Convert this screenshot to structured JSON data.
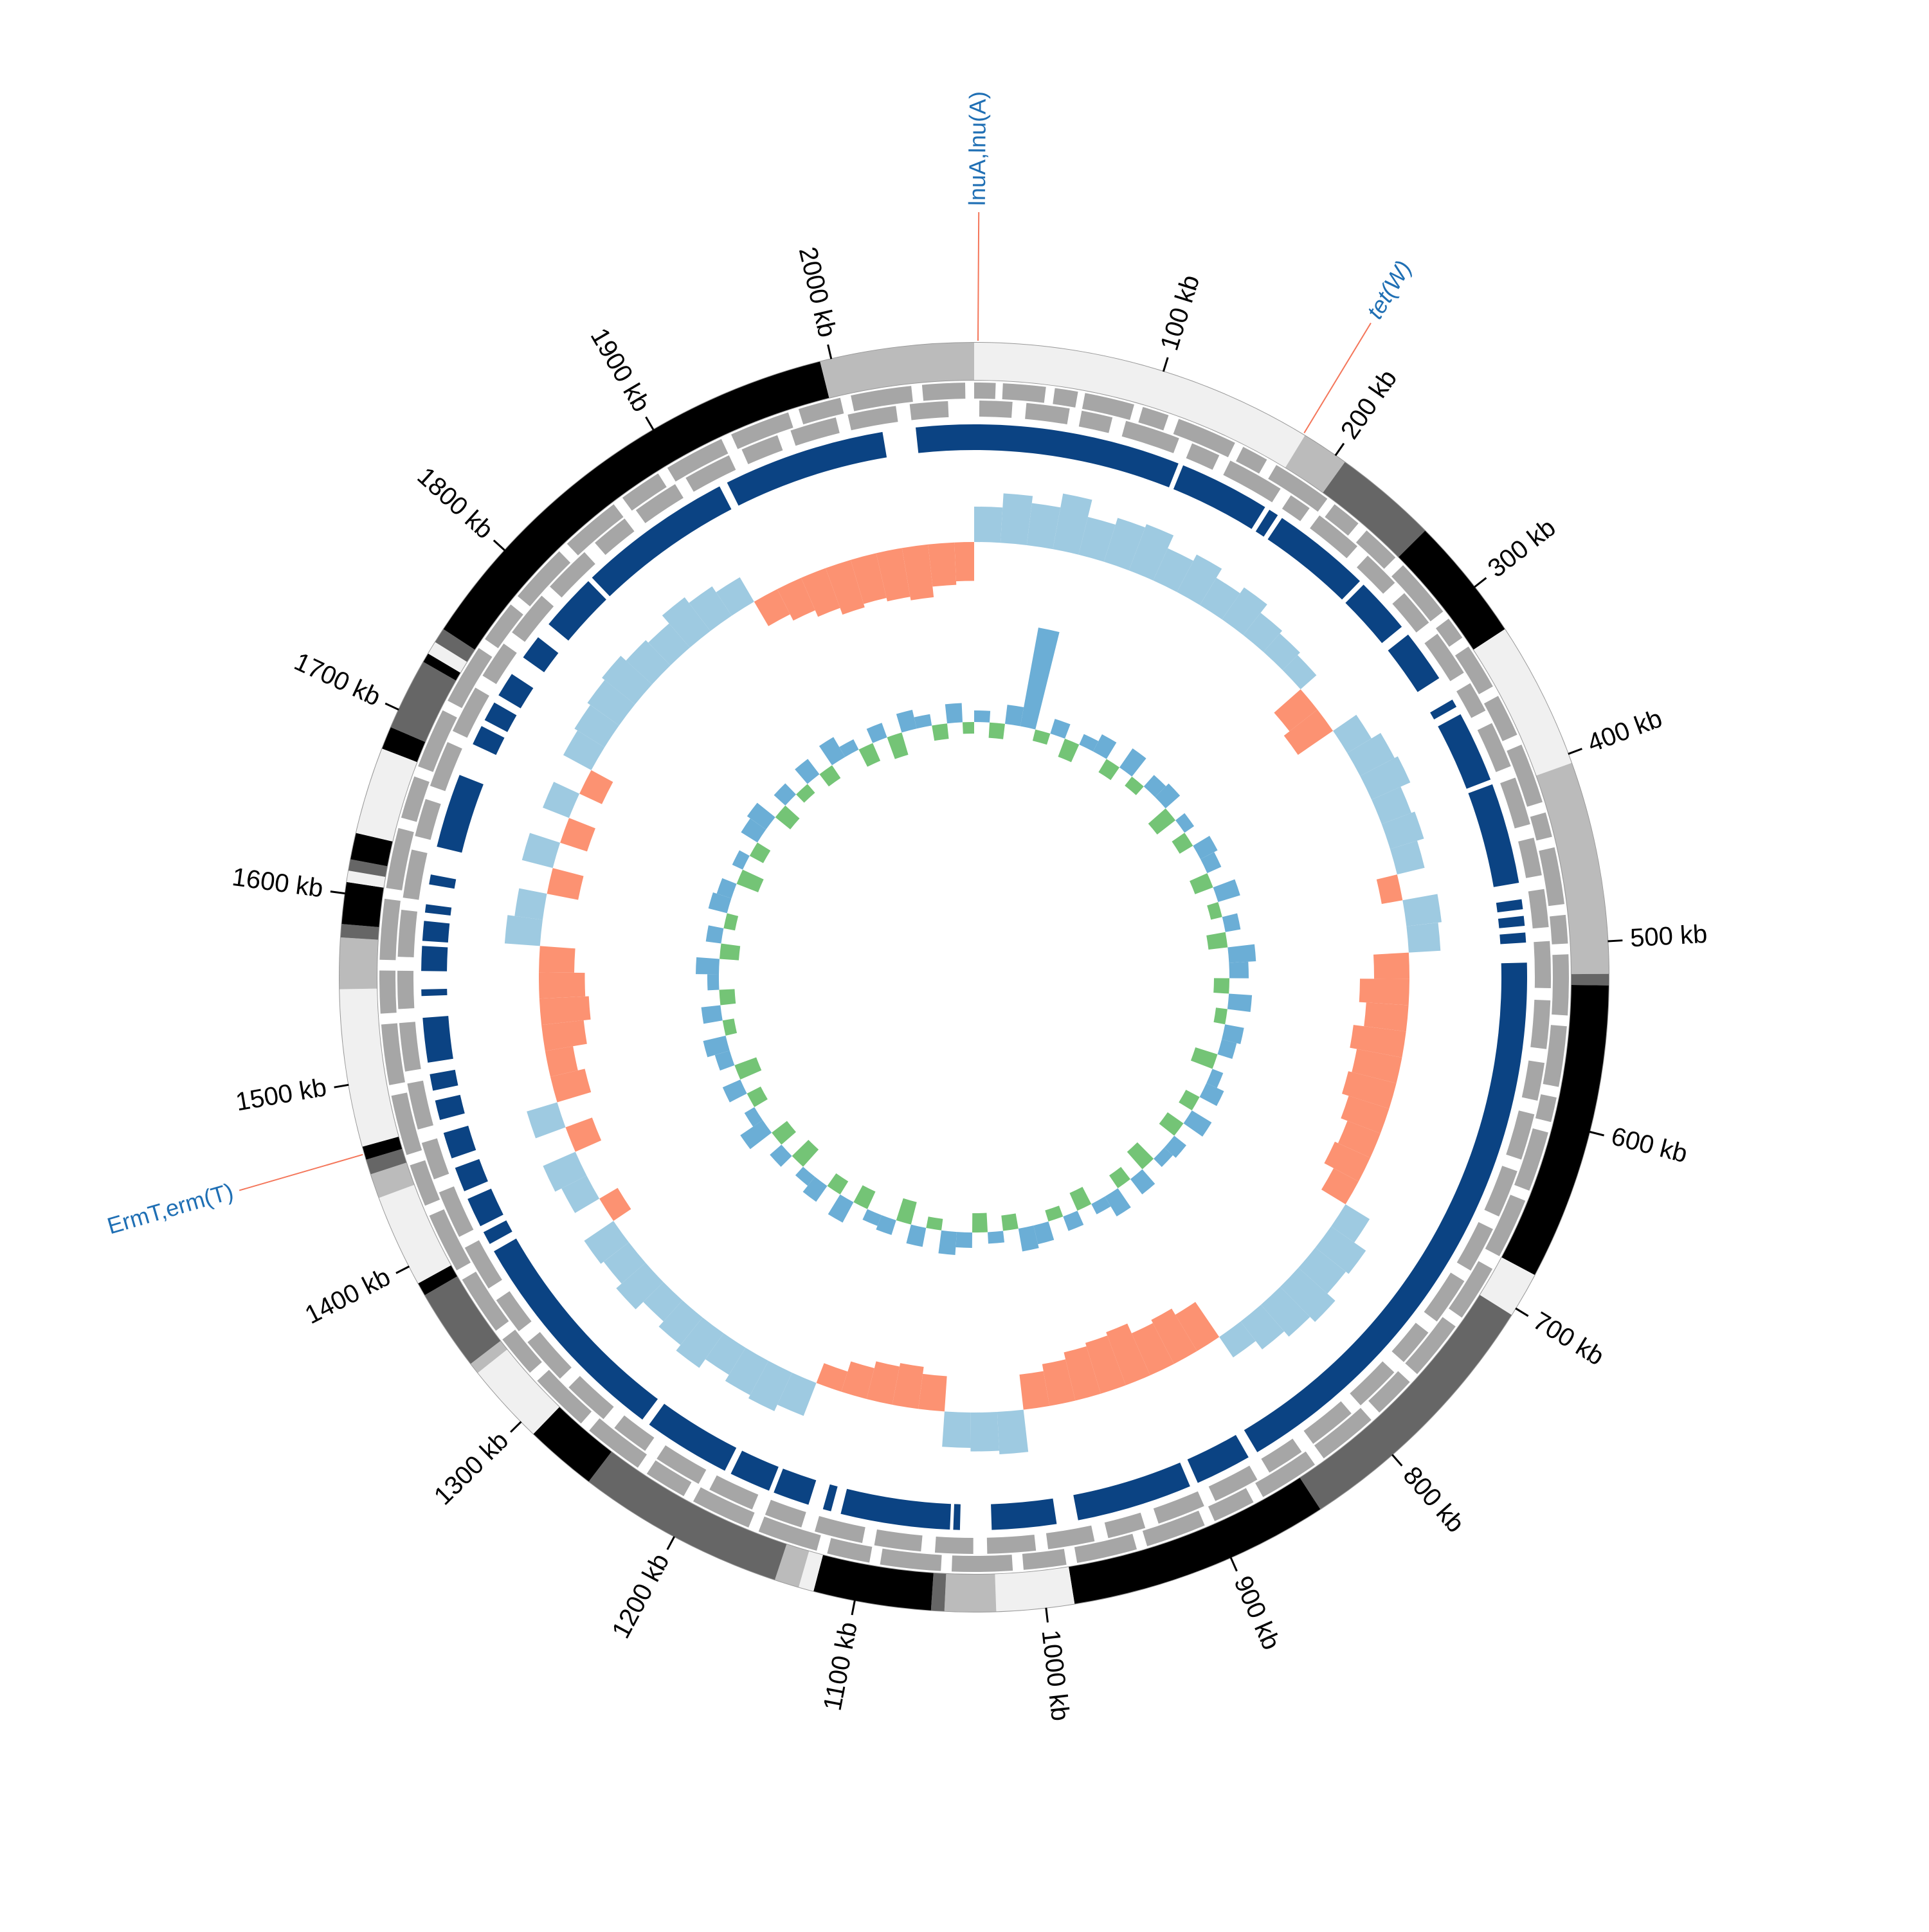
{
  "chart_data": {
    "type": "circular-genome",
    "xlim": [
      0,
      2075
    ],
    "xticks": [
      {
        "value": 100,
        "label": "100 kb"
      },
      {
        "value": 200,
        "label": "200 kb"
      },
      {
        "value": 300,
        "label": "300 kb"
      },
      {
        "value": 400,
        "label": "400 kb"
      },
      {
        "value": 500,
        "label": "500 kb"
      },
      {
        "value": 600,
        "label": "600 kb"
      },
      {
        "value": 700,
        "label": "700 kb"
      },
      {
        "value": 800,
        "label": "800 kb"
      },
      {
        "value": 900,
        "label": "900 kb"
      },
      {
        "value": 1000,
        "label": "1000 kb"
      },
      {
        "value": 1100,
        "label": "1100 kb"
      },
      {
        "value": 1200,
        "label": "1200 kb"
      },
      {
        "value": 1300,
        "label": "1300 kb"
      },
      {
        "value": 1400,
        "label": "1400 kb"
      },
      {
        "value": 1500,
        "label": "1500 kb"
      },
      {
        "value": 1600,
        "label": "1600 kb"
      },
      {
        "value": 1700,
        "label": "1700 kb"
      },
      {
        "value": 1800,
        "label": "1800 kb"
      },
      {
        "value": 1900,
        "label": "1900 kb"
      },
      {
        "value": 2000,
        "label": "2000 kb"
      }
    ],
    "contigs": {
      "starts": [
        0,
        181,
        206,
        261,
        327,
        405,
        517,
        523,
        680,
        704,
        847,
        985,
        1026,
        1053,
        1060,
        1122,
        1130,
        1143,
        1253,
        1291,
        1334,
        1340,
        1383,
        1390,
        1439,
        1452,
        1460,
        1467,
        1550,
        1577,
        1584,
        1606,
        1612,
        1618,
        1632,
        1678,
        1690,
        1728,
        1733,
        1740,
        1748,
        1994
      ],
      "ends": [
        181,
        206,
        261,
        327,
        405,
        517,
        523,
        680,
        704,
        847,
        985,
        1026,
        1053,
        1060,
        1122,
        1130,
        1143,
        1253,
        1291,
        1334,
        1340,
        1383,
        1390,
        1439,
        1452,
        1460,
        1467,
        1550,
        1577,
        1584,
        1606,
        1612,
        1618,
        1632,
        1678,
        1690,
        1728,
        1733,
        1740,
        1748,
        1994,
        2075
      ],
      "colors": [
        "#f0f0f0",
        "#bbbbbb",
        "#666666",
        "#000000",
        "#f0f0f0",
        "#bbbbbb",
        "#666666",
        "#000000",
        "#f0f0f0",
        "#666666",
        "#000000",
        "#f0f0f0",
        "#bbbbbb",
        "#666666",
        "#000000",
        "#f0f0f0",
        "#bbbbbb",
        "#666666",
        "#000000",
        "#f0f0f0",
        "#bbbbbb",
        "#666666",
        "#000000",
        "#f0f0f0",
        "#bbbbbb",
        "#666666",
        "#000000",
        "#f0f0f0",
        "#bbbbbb",
        "#666666",
        "#000000",
        "#f0f0f0",
        "#666666",
        "#000000",
        "#f0f0f0",
        "#000000",
        "#666666",
        "#000000",
        "#f0f0f0",
        "#666666",
        "#000000",
        "#bbbbbb"
      ]
    },
    "genes": {
      "color": "#a6a6a6",
      "forward": [
        [
          0,
          12
        ],
        [
          16,
          40
        ],
        [
          45,
          58
        ],
        [
          62,
          90
        ],
        [
          95,
          110
        ],
        [
          116,
          150
        ],
        [
          155,
          170
        ],
        [
          176,
          210
        ],
        [
          215,
          232
        ],
        [
          238,
          260
        ],
        [
          266,
          300
        ],
        [
          305,
          318
        ],
        [
          324,
          350
        ],
        [
          356,
          380
        ],
        [
          386,
          420
        ],
        [
          426,
          440
        ],
        [
          446,
          478
        ],
        [
          484,
          500
        ],
        [
          506,
          540
        ],
        [
          546,
          580
        ],
        [
          586,
          600
        ],
        [
          606,
          640
        ],
        [
          646,
          680
        ],
        [
          688,
          720
        ],
        [
          726,
          760
        ],
        [
          766,
          790
        ],
        [
          796,
          830
        ],
        [
          836,
          870
        ],
        [
          876,
          900
        ],
        [
          906,
          940
        ],
        [
          946,
          980
        ],
        [
          986,
          1010
        ],
        [
          1016,
          1050
        ],
        [
          1056,
          1090
        ],
        [
          1096,
          1120
        ],
        [
          1126,
          1160
        ],
        [
          1166,
          1200
        ],
        [
          1206,
          1230
        ],
        [
          1236,
          1270
        ],
        [
          1276,
          1310
        ],
        [
          1316,
          1340
        ],
        [
          1346,
          1380
        ],
        [
          1386,
          1420
        ],
        [
          1426,
          1450
        ],
        [
          1456,
          1490
        ],
        [
          1496,
          1530
        ],
        [
          1536,
          1560
        ],
        [
          1566,
          1600
        ],
        [
          1606,
          1640
        ],
        [
          1646,
          1670
        ],
        [
          1676,
          1710
        ],
        [
          1716,
          1750
        ],
        [
          1756,
          1780
        ],
        [
          1786,
          1820
        ],
        [
          1826,
          1860
        ],
        [
          1866,
          1890
        ],
        [
          1896,
          1930
        ],
        [
          1936,
          1970
        ],
        [
          1976,
          2000
        ],
        [
          2006,
          2040
        ],
        [
          2046,
          2070
        ]
      ],
      "reverse": [
        [
          3,
          22
        ],
        [
          30,
          55
        ],
        [
          62,
          80
        ],
        [
          88,
          120
        ],
        [
          128,
          145
        ],
        [
          152,
          185
        ],
        [
          192,
          205
        ],
        [
          212,
          240
        ],
        [
          248,
          270
        ],
        [
          278,
          300
        ],
        [
          308,
          335
        ],
        [
          342,
          360
        ],
        [
          368,
          395
        ],
        [
          402,
          430
        ],
        [
          438,
          460
        ],
        [
          468,
          490
        ],
        [
          498,
          525
        ],
        [
          532,
          560
        ],
        [
          568,
          590
        ],
        [
          598,
          625
        ],
        [
          632,
          660
        ],
        [
          668,
          695
        ],
        [
          702,
          730
        ],
        [
          738,
          760
        ],
        [
          768,
          795
        ],
        [
          802,
          830
        ],
        [
          838,
          860
        ],
        [
          868,
          895
        ],
        [
          902,
          930
        ],
        [
          938,
          960
        ],
        [
          968,
          995
        ],
        [
          1002,
          1030
        ],
        [
          1038,
          1060
        ],
        [
          1068,
          1095
        ],
        [
          1102,
          1130
        ],
        [
          1138,
          1160
        ],
        [
          1168,
          1195
        ],
        [
          1202,
          1230
        ],
        [
          1238,
          1260
        ],
        [
          1268,
          1295
        ],
        [
          1302,
          1330
        ],
        [
          1338,
          1360
        ],
        [
          1368,
          1395
        ],
        [
          1402,
          1430
        ],
        [
          1438,
          1460
        ],
        [
          1468,
          1495
        ],
        [
          1502,
          1530
        ],
        [
          1538,
          1560
        ],
        [
          1568,
          1595
        ],
        [
          1602,
          1630
        ],
        [
          1638,
          1660
        ],
        [
          1668,
          1695
        ],
        [
          1702,
          1730
        ],
        [
          1738,
          1760
        ],
        [
          1768,
          1795
        ],
        [
          1802,
          1830
        ],
        [
          1838,
          1860
        ],
        [
          1868,
          1895
        ],
        [
          1902,
          1930
        ],
        [
          1938,
          1960
        ],
        [
          1968,
          1995
        ],
        [
          2002,
          2030
        ],
        [
          2038,
          2060
        ]
      ]
    },
    "synteny": {
      "color": "#0b4383",
      "blocks": [
        [
          0,
          125
        ],
        [
          128,
          183
        ],
        [
          186,
          192
        ],
        [
          195,
          255
        ],
        [
          258,
          292
        ],
        [
          298,
          330
        ],
        [
          345,
          350
        ],
        [
          355,
          398
        ],
        [
          401,
          462
        ],
        [
          472,
          478
        ],
        [
          482,
          488
        ],
        [
          492,
          498
        ],
        [
          510,
          860
        ],
        [
          866,
          900
        ],
        [
          905,
          975
        ],
        [
          988,
          1027
        ],
        [
          1046,
          1050
        ],
        [
          1052,
          1118
        ],
        [
          1124,
          1129
        ],
        [
          1138,
          1160
        ],
        [
          1163,
          1188
        ],
        [
          1192,
          1245
        ],
        [
          1250,
          1385
        ],
        [
          1390,
          1398
        ],
        [
          1402,
          1420
        ],
        [
          1425,
          1440
        ],
        [
          1446,
          1462
        ],
        [
          1470,
          1482
        ],
        [
          1488,
          1498
        ],
        [
          1505,
          1532
        ],
        [
          1545,
          1549
        ],
        [
          1560,
          1575
        ],
        [
          1578,
          1590
        ],
        [
          1595,
          1600
        ],
        [
          1612,
          1618
        ],
        [
          1635,
          1680
        ],
        [
          1700,
          1712
        ],
        [
          1716,
          1728
        ],
        [
          1733,
          1748
        ],
        [
          1760,
          1775
        ],
        [
          1785,
          1820
        ],
        [
          1823,
          1917
        ],
        [
          1922,
          2020
        ],
        [
          2040,
          2075
        ]
      ]
    },
    "x": [
      0,
      20,
      40,
      60,
      80,
      100,
      120,
      140,
      160,
      180,
      200,
      220,
      240,
      260,
      280,
      300,
      320,
      340,
      360,
      380,
      400,
      420,
      440,
      460,
      480,
      500,
      520,
      540,
      560,
      580,
      600,
      620,
      640,
      660,
      680,
      700,
      720,
      740,
      760,
      780,
      800,
      820,
      840,
      860,
      880,
      900,
      920,
      940,
      960,
      980,
      1000,
      1020,
      1040,
      1060,
      1080,
      1100,
      1120,
      1140,
      1160,
      1180,
      1200,
      1220,
      1240,
      1260,
      1280,
      1300,
      1320,
      1340,
      1360,
      1380,
      1400,
      1420,
      1440,
      1460,
      1480,
      1500,
      1520,
      1540,
      1560,
      1580,
      1600,
      1620,
      1640,
      1660,
      1680,
      1700,
      1720,
      1740,
      1760,
      1780,
      1800,
      1820,
      1840,
      1860,
      1880,
      1900,
      1920,
      1940,
      1960,
      1980,
      2000,
      2020,
      2040,
      2060
    ],
    "gc_skew": {
      "positive_color": "#9ecae1",
      "negative_color": "#fc9272",
      "values": [
        0.5,
        0.7,
        0.6,
        0.8,
        0.55,
        0.65,
        0.7,
        0.5,
        0.6,
        0.45,
        0.55,
        0.4,
        0.35,
        0.3,
        -0.5,
        -0.6,
        0.4,
        0.55,
        0.6,
        0.45,
        0.5,
        0.4,
        -0.3,
        0.5,
        0.45,
        -0.5,
        -0.7,
        -0.6,
        -0.75,
        -0.65,
        -0.7,
        -0.6,
        -0.5,
        -0.55,
        -0.4,
        0.4,
        0.6,
        0.55,
        0.7,
        0.6,
        0.5,
        0.35,
        -0.6,
        -0.7,
        -0.65,
        -0.8,
        -0.75,
        -0.7,
        -0.6,
        -0.5,
        0.6,
        0.55,
        0.5,
        -0.5,
        -0.6,
        -0.55,
        -0.45,
        -0.3,
        0.5,
        0.6,
        0.55,
        0.45,
        0.6,
        0.5,
        0.4,
        0.55,
        0.45,
        0.5,
        -0.3,
        0.4,
        0.5,
        -0.4,
        0.45,
        -0.5,
        -0.4,
        -0.6,
        -0.7,
        -0.65,
        -0.5,
        0.5,
        0.4,
        -0.45,
        0.45,
        -0.4,
        0.4,
        -0.35,
        0.45,
        0.5,
        0.55,
        0.6,
        0.5,
        0.45,
        0.6,
        0.5,
        0.4,
        -0.4,
        -0.5,
        -0.6,
        -0.7,
        -0.65,
        -0.7,
        -0.75,
        -0.6,
        -0.55
      ]
    },
    "gc_content": {
      "positive_color": "#6baed6",
      "negative_color": "#74c476",
      "values": [
        0.3,
        -0.4,
        0.5,
        2.6,
        -0.3,
        0.4,
        -0.5,
        0.3,
        0.5,
        -0.4,
        0.6,
        -0.3,
        0.4,
        0.5,
        -0.6,
        0.3,
        -0.4,
        0.5,
        0.4,
        -0.5,
        0.6,
        -0.3,
        0.4,
        -0.5,
        0.7,
        0.5,
        -0.4,
        0.6,
        -0.3,
        0.5,
        0.4,
        -0.6,
        0.3,
        0.5,
        -0.4,
        0.6,
        -0.5,
        0.4,
        0.3,
        -0.6,
        0.5,
        -0.4,
        0.6,
        0.3,
        -0.5,
        0.4,
        -0.3,
        0.5,
        0.6,
        -0.4,
        0.3,
        -0.5,
        0.4,
        0.6,
        -0.3,
        0.5,
        -0.6,
        0.4,
        0.3,
        -0.5,
        0.6,
        -0.4,
        0.5,
        0.3,
        -0.6,
        0.4,
        -0.5,
        0.7,
        0.3,
        -0.4,
        0.5,
        -0.6,
        0.4,
        0.6,
        -0.3,
        0.5,
        -0.4,
        0.3,
        0.6,
        -0.5,
        0.4,
        -0.3,
        0.5,
        0.4,
        -0.6,
        0.3,
        -0.4,
        0.5,
        0.6,
        -0.5,
        0.4,
        -0.3,
        0.5,
        -0.4,
        0.6,
        0.3,
        -0.5,
        0.4,
        -0.6,
        0.5,
        0.3,
        -0.4,
        0.5,
        -0.3
      ]
    },
    "annotations": {
      "label_color": "#1f6fb4",
      "line_color": "#f4765a",
      "items": [
        {
          "text": "lnuA,lnu(A)",
          "position": 2
        },
        {
          "text": "tet(W)",
          "position": 180,
          "italic": true
        },
        {
          "text": "ErmT,erm(T)",
          "position": 1463
        }
      ]
    }
  }
}
